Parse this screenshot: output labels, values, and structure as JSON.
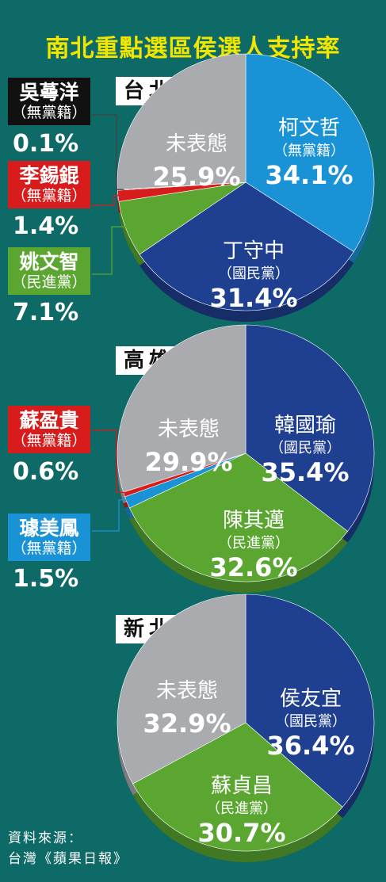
{
  "title": "南北重點選區侯選人支持率",
  "source_line1": "資料來源：",
  "source_line2": "台灣《蘋果日報》",
  "colors": {
    "background": "#0d6a66",
    "title": "#f2e600",
    "independent_blue": "#1a93d6",
    "kmt": "#1f3f91",
    "dpp": "#5aa631",
    "undecided": "#a9abaf",
    "red": "#d81b1b",
    "black": "#111111"
  },
  "chart_data": [
    {
      "type": "pie",
      "city": "台北市",
      "slices": [
        {
          "name": "柯文哲",
          "party": "（無黨籍）",
          "value": 34.1,
          "label": "34.1%",
          "color": "#1a93d6"
        },
        {
          "name": "丁守中",
          "party": "（國民黨）",
          "value": 31.4,
          "label": "31.4%",
          "color": "#1f3f91"
        },
        {
          "name": "姚文智",
          "party": "（民進黨）",
          "value": 7.1,
          "label": "7.1%",
          "color": "#5aa631"
        },
        {
          "name": "李錫錕",
          "party": "（無黨籍）",
          "value": 1.4,
          "label": "1.4%",
          "color": "#d81b1b"
        },
        {
          "name": "吳蕚洋",
          "party": "（無黨籍）",
          "value": 0.1,
          "label": "0.1%",
          "color": "#111111"
        },
        {
          "name": "未表態",
          "party": "",
          "value": 25.9,
          "label": "25.9%",
          "color": "#a9abaf"
        }
      ]
    },
    {
      "type": "pie",
      "city": "高雄市",
      "slices": [
        {
          "name": "韓國瑜",
          "party": "（國民黨）",
          "value": 35.4,
          "label": "35.4%",
          "color": "#1f3f91"
        },
        {
          "name": "陳其邁",
          "party": "（民進黨）",
          "value": 32.6,
          "label": "32.6%",
          "color": "#5aa631"
        },
        {
          "name": "璩美鳳",
          "party": "（無黨籍）",
          "value": 1.5,
          "label": "1.5%",
          "color": "#1a93d6"
        },
        {
          "name": "蘇盈貴",
          "party": "（無黨籍）",
          "value": 0.6,
          "label": "0.6%",
          "color": "#d81b1b"
        },
        {
          "name": "未表態",
          "party": "",
          "value": 29.9,
          "label": "29.9%",
          "color": "#a9abaf"
        }
      ]
    },
    {
      "type": "pie",
      "city": "新北市",
      "slices": [
        {
          "name": "侯友宜",
          "party": "（國民黨）",
          "value": 36.4,
          "label": "36.4%",
          "color": "#1f3f91"
        },
        {
          "name": "蘇貞昌",
          "party": "（民進黨）",
          "value": 30.7,
          "label": "30.7%",
          "color": "#5aa631"
        },
        {
          "name": "未表態",
          "party": "",
          "value": 32.9,
          "label": "32.9%",
          "color": "#a9abaf"
        }
      ]
    }
  ]
}
